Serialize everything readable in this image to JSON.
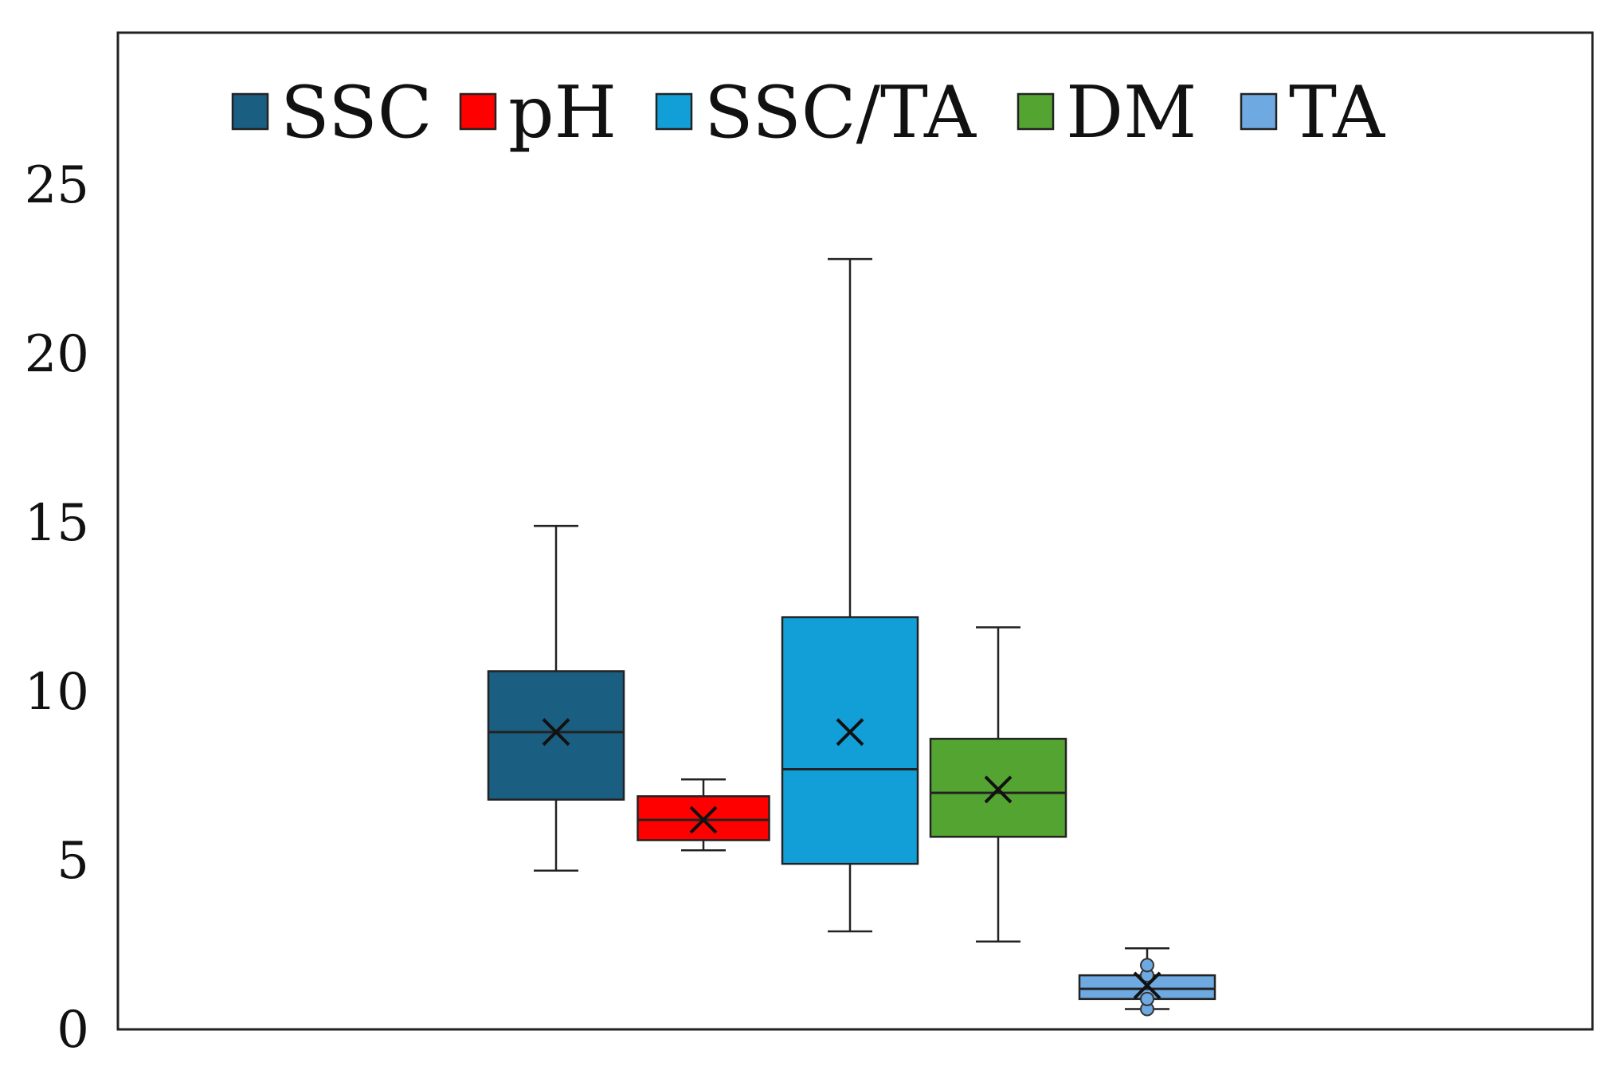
{
  "chart_data": {
    "type": "box",
    "title": "",
    "xlabel": "",
    "ylabel": "",
    "ylim": [
      0,
      29.5
    ],
    "yticks": [
      0,
      5,
      10,
      15,
      20,
      25
    ],
    "ytick_labels": [
      "0",
      "5",
      "10",
      "15",
      "20",
      "25"
    ],
    "grid": false,
    "legend": {
      "position": "top",
      "entries": [
        "SSC",
        "pH",
        "SSC/TA",
        "DM",
        "TA"
      ]
    },
    "series": [
      {
        "name": "SSC",
        "color": "#1a5e82",
        "min": 4.7,
        "q1": 6.8,
        "median": 8.8,
        "q3": 10.6,
        "max": 14.9,
        "mean": 8.8,
        "outliers": []
      },
      {
        "name": "pH",
        "color": "#ff0000",
        "min": 5.3,
        "q1": 5.6,
        "median": 6.2,
        "q3": 6.9,
        "max": 7.4,
        "mean": 6.2,
        "outliers": []
      },
      {
        "name": "SSC/TA",
        "color": "#129fd8",
        "min": 2.9,
        "q1": 4.9,
        "median": 7.7,
        "q3": 12.2,
        "max": 22.8,
        "mean": 8.8,
        "outliers": []
      },
      {
        "name": "DM",
        "color": "#54a432",
        "min": 2.6,
        "q1": 5.7,
        "median": 7.0,
        "q3": 8.6,
        "max": 11.9,
        "mean": 7.1,
        "outliers": []
      },
      {
        "name": "TA",
        "color": "#6fa9e1",
        "min": 0.6,
        "q1": 0.9,
        "median": 1.2,
        "q3": 1.6,
        "max": 2.4,
        "mean": 1.3,
        "outliers": [
          0.6,
          0.9,
          1.6,
          1.9
        ]
      }
    ]
  }
}
